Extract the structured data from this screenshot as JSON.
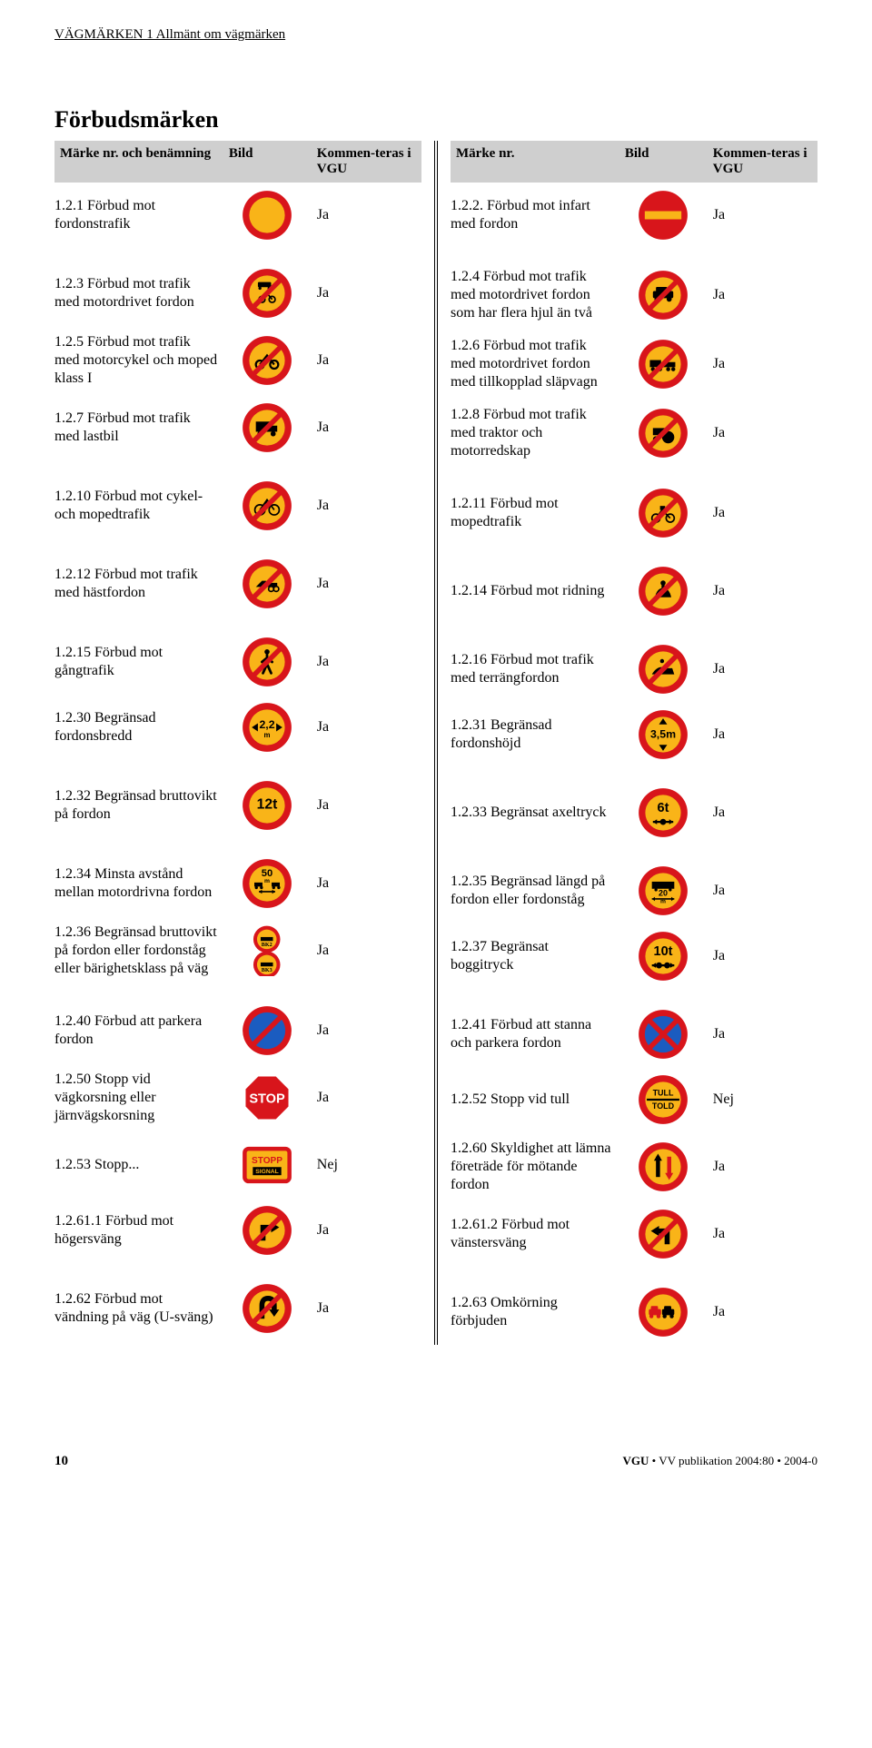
{
  "header": "VÄGMÄRKEN 1 Allmänt om vägmärken",
  "section_title": "Förbudsmärken",
  "columns": {
    "left_c1": "Märke nr. och benämning",
    "left_c2": "Bild",
    "left_c3": "Kommen-teras i VGU",
    "right_c1": "Märke nr.",
    "right_c2": "Bild",
    "right_c3": "Kommen-teras i VGU"
  },
  "colors": {
    "red": "#d8151b",
    "yellow": "#f9b418",
    "blue": "#1b5cc0",
    "black": "#000000",
    "white": "#ffffff",
    "grey": "#cfcfcf"
  },
  "groups": [
    {
      "left": [
        {
          "label": "1.2.1 Förbud mot fordonstrafik",
          "comment": "Ja",
          "icon": "solid-circle"
        }
      ],
      "right": [
        {
          "label": "1.2.2. Förbud mot infart med fordon",
          "comment": "Ja",
          "icon": "no-entry"
        }
      ]
    },
    {
      "left": [
        {
          "label": "1.2.3 Förbud mot trafik med motordrivet fordon",
          "comment": "Ja",
          "icon": "car-moto-slash"
        },
        {
          "label": "1.2.5 Förbud mot trafik med motorcykel och moped klass I",
          "comment": "Ja",
          "icon": "moto-slash"
        },
        {
          "label": "1.2.7 Förbud mot trafik med lastbil",
          "comment": "Ja",
          "icon": "truck-slash"
        }
      ],
      "right": [
        {
          "label": "1.2.4 Förbud mot trafik med motordrivet fordon som har flera hjul än två",
          "comment": "Ja",
          "icon": "car-slash"
        },
        {
          "label": "1.2.6 Förbud mot trafik med motordrivet fordon med tillkopplad släpvagn",
          "comment": "Ja",
          "icon": "trailer-slash"
        },
        {
          "label": "1.2.8 Förbud mot trafik med traktor och motorredskap",
          "comment": "Ja",
          "icon": "tractor-slash"
        }
      ]
    },
    {
      "left": [
        {
          "label": "1.2.10 Förbud mot cykel- och mopedtrafik",
          "comment": "Ja",
          "icon": "bike-slash"
        }
      ],
      "right": [
        {
          "label": "1.2.11 Förbud mot mopedtrafik",
          "comment": "Ja",
          "icon": "moped-slash"
        }
      ]
    },
    {
      "left": [
        {
          "label": "1.2.12 Förbud mot trafik med hästfordon",
          "comment": "Ja",
          "icon": "horsecart-slash"
        }
      ],
      "right": [
        {
          "label": "1.2.14 Förbud mot ridning",
          "comment": "Ja",
          "icon": "rider-slash"
        }
      ]
    },
    {
      "left": [
        {
          "label": "1.2.15 Förbud mot gångtrafik",
          "comment": "Ja",
          "icon": "ped-slash"
        },
        {
          "label": "1.2.30 Begränsad fordonsbredd",
          "comment": "Ja",
          "icon": "width-limit",
          "txt": "2,2",
          "sub": "m"
        }
      ],
      "right": [
        {
          "label": "1.2.16 Förbud mot trafik med terrängfordon",
          "comment": "Ja",
          "icon": "snowmobile-slash"
        },
        {
          "label": "1.2.31 Begränsad fordonshöjd",
          "comment": "Ja",
          "icon": "height-limit",
          "txt": "3,5m"
        }
      ]
    },
    {
      "left": [
        {
          "label": "1.2.32 Begränsad bruttovikt på fordon",
          "comment": "Ja",
          "icon": "text-sign",
          "txt": "12t"
        }
      ],
      "right": [
        {
          "label": "1.2.33 Begränsat axeltryck",
          "comment": "Ja",
          "icon": "axle",
          "txt": "6t"
        }
      ]
    },
    {
      "left": [
        {
          "label": "1.2.34 Minsta avstånd mellan motordrivna fordon",
          "comment": "Ja",
          "icon": "min-dist",
          "txt": "50",
          "sub": "m"
        },
        {
          "label": "1.2.36 Begränsad bruttovikt på fordon eller fordonståg eller bärighetsklass på väg",
          "comment": "Ja",
          "icon": "bk-pair"
        }
      ],
      "right": [
        {
          "label": "1.2.35 Begränsad längd på fordon eller fordonståg",
          "comment": "Ja",
          "icon": "length-limit",
          "txt": "20",
          "sub": "m"
        },
        {
          "label": "1.2.37 Begränsat boggitryck",
          "comment": "Ja",
          "icon": "boggi",
          "txt": "10t"
        }
      ]
    },
    {
      "left": [
        {
          "label": "1.2.40 Förbud att parkera fordon",
          "comment": "Ja",
          "icon": "no-park"
        },
        {
          "label": "1.2.50 Stopp vid vägkorsning eller järnvägskorsning",
          "comment": "Ja",
          "icon": "stop-oct"
        },
        {
          "label": "1.2.53 Stopp...",
          "comment": "Nej",
          "icon": "stopp-signal"
        },
        {
          "label": "1.2.61.1 Förbud mot högersväng",
          "comment": "Ja",
          "icon": "no-right"
        }
      ],
      "right": [
        {
          "label": "1.2.41 Förbud att stanna och parkera fordon",
          "comment": "Ja",
          "icon": "no-stop"
        },
        {
          "label": "1.2.52 Stopp vid tull",
          "comment": "Nej",
          "icon": "tull-told"
        },
        {
          "label": "1.2.60 Skyldighet att lämna företräde för mötande fordon",
          "comment": "Ja",
          "icon": "give-way-onc"
        },
        {
          "label": "1.2.61.2 Förbud mot vänstersväng",
          "comment": "Ja",
          "icon": "no-left"
        }
      ]
    },
    {
      "left": [
        {
          "label": "1.2.62 Förbud mot vändning på väg (U-sväng)",
          "comment": "Ja",
          "icon": "no-uturn"
        }
      ],
      "right": [
        {
          "label": "1.2.63 Omkörning förbjuden",
          "comment": "Ja",
          "icon": "no-overtake"
        }
      ]
    }
  ],
  "footer": {
    "page": "10",
    "pub": "VGU • VV publikation 2004:80 • 2004-0"
  }
}
